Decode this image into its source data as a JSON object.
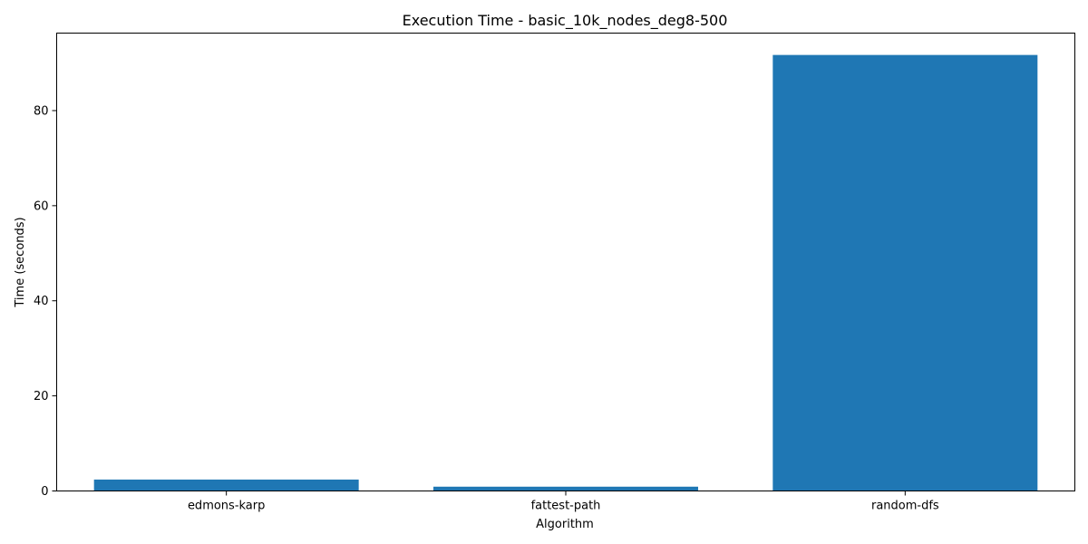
{
  "chart_data": {
    "type": "bar",
    "title": "Execution Time - basic_10k_nodes_deg8-500",
    "xlabel": "Algorithm",
    "ylabel": "Time (seconds)",
    "categories": [
      "edmons-karp",
      "fattest-path",
      "random-dfs"
    ],
    "values": [
      2.4,
      0.9,
      91.7
    ],
    "ylim": [
      0,
      96.3
    ],
    "yticks": [
      0,
      20,
      40,
      60,
      80
    ],
    "bar_color": "#1f77b4",
    "grid": false,
    "legend": "none"
  }
}
